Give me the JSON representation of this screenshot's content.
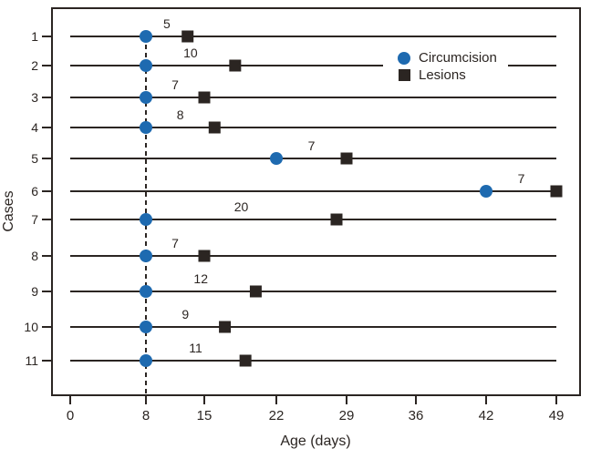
{
  "figure": {
    "xlabel": "Age (days)",
    "ylabel": "Cases"
  },
  "legend": {
    "items": [
      {
        "label": "Circumcision",
        "marker": "circle",
        "color": "#1e6ab0"
      },
      {
        "label": "Lesions",
        "marker": "square",
        "color": "#2b2522"
      }
    ]
  },
  "chart_data": {
    "type": "scatter",
    "title": "",
    "xlabel": "Age (days)",
    "ylabel": "Cases",
    "x_ticks": [
      0,
      8,
      15,
      22,
      29,
      36,
      42,
      49
    ],
    "xlim": [
      0,
      49
    ],
    "y_categories": [
      "1",
      "2",
      "3",
      "4",
      "5",
      "6",
      "7",
      "8",
      "9",
      "10",
      "11"
    ],
    "reference_line_x": 8,
    "grid": false,
    "legend_position": "upper-right-inside",
    "series": [
      {
        "name": "Circumcision",
        "marker": "circle",
        "color": "#1e6ab0",
        "values": [
          8,
          8,
          8,
          8,
          22,
          42,
          8,
          8,
          8,
          8,
          8
        ]
      },
      {
        "name": "Lesions",
        "marker": "square",
        "color": "#2b2522",
        "values": [
          13,
          18,
          15,
          16,
          29,
          49,
          28,
          15,
          20,
          17,
          19
        ]
      }
    ],
    "interval_labels": [
      "5",
      "10",
      "7",
      "8",
      "7",
      "7",
      "20",
      "7",
      "12",
      "9",
      "11"
    ],
    "colors": {
      "circumcision": "#1e6ab0",
      "lesions": "#2b2522",
      "axis": "#2b2522"
    }
  }
}
